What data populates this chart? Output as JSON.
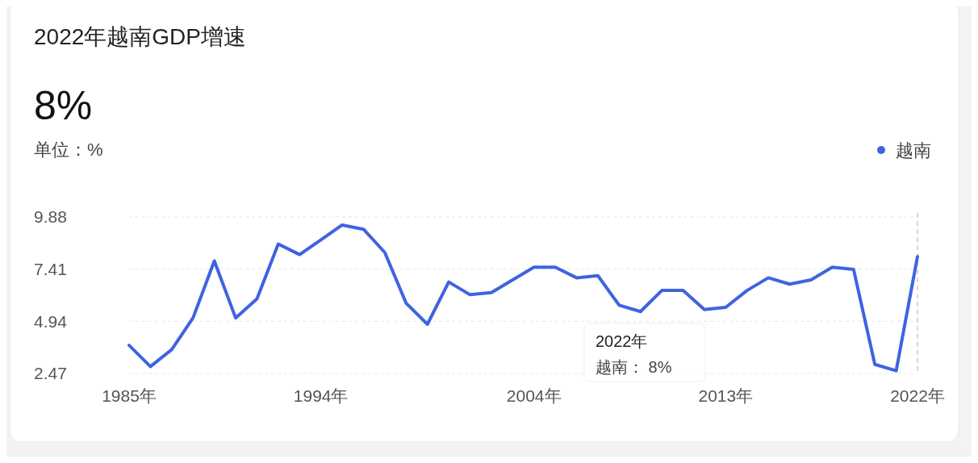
{
  "chart_data": {
    "type": "line",
    "title": "2022年越南GDP增速",
    "subtitle": "8%",
    "ylabel": "单位：%",
    "x": [
      1985,
      1986,
      1987,
      1988,
      1989,
      1990,
      1991,
      1992,
      1993,
      1994,
      1995,
      1996,
      1997,
      1998,
      1999,
      2000,
      2001,
      2002,
      2003,
      2004,
      2005,
      2006,
      2007,
      2008,
      2009,
      2010,
      2011,
      2012,
      2013,
      2014,
      2015,
      2016,
      2017,
      2018,
      2019,
      2020,
      2021,
      2022
    ],
    "series": [
      {
        "name": "越南",
        "color": "#3f63e0",
        "values": [
          3.8,
          2.8,
          3.6,
          5.1,
          7.8,
          5.1,
          6.0,
          8.6,
          8.1,
          8.8,
          9.5,
          9.3,
          8.2,
          5.8,
          4.8,
          6.8,
          6.2,
          6.3,
          6.9,
          7.5,
          7.5,
          7.0,
          7.1,
          5.7,
          5.4,
          6.4,
          6.4,
          5.5,
          5.6,
          6.4,
          7.0,
          6.7,
          6.9,
          7.5,
          7.4,
          2.9,
          2.6,
          8.0
        ]
      }
    ],
    "xlim": [
      1985,
      2022
    ],
    "xticks": [
      {
        "value": 1985,
        "label": "1985年"
      },
      {
        "value": 1994,
        "label": "1994年"
      },
      {
        "value": 2004,
        "label": "2004年"
      },
      {
        "value": 2013,
        "label": "2013年"
      },
      {
        "value": 2022,
        "label": "2022年"
      }
    ],
    "ylim": [
      2.47,
      9.88
    ],
    "yticks": [
      2.47,
      4.94,
      7.41,
      9.88
    ],
    "grid": "y",
    "legend": "top right",
    "marker": "none",
    "line_style": "solid",
    "ref_lines": [
      {
        "axis": "x",
        "value": 2022,
        "color": "#b0b0b0",
        "line_style": "dashed"
      }
    ],
    "annotations": [
      "2022年",
      "越南： 8%"
    ]
  }
}
